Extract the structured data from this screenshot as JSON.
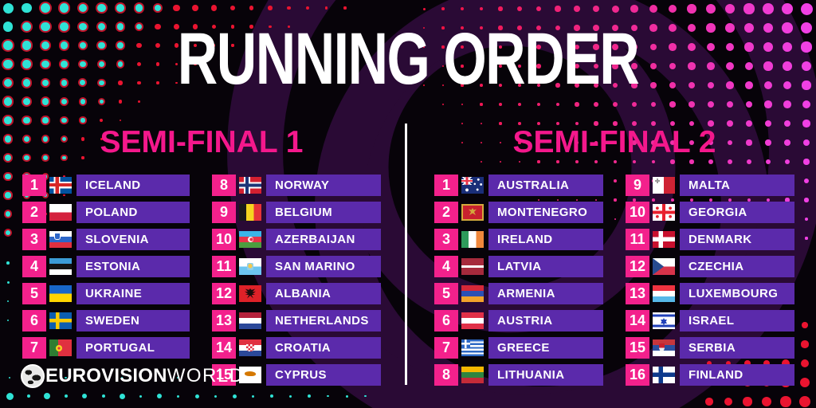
{
  "title": "RUNNING ORDER",
  "colors": {
    "background": "#070309",
    "accent_pink": "#f3218c",
    "bar_purple": "#5b2aab",
    "dot_teal": "#2fe3d6",
    "dot_red": "#ea1430",
    "dot_magenta": "#f040e4",
    "swirl_purple": "#2a0a35",
    "text_white": "#ffffff"
  },
  "semifinals": [
    {
      "label": "SEMI-FINAL 1",
      "columns": [
        [
          {
            "number": "1",
            "country": "ICELAND",
            "flag": "iceland"
          },
          {
            "number": "2",
            "country": "POLAND",
            "flag": "poland"
          },
          {
            "number": "3",
            "country": "SLOVENIA",
            "flag": "slovenia"
          },
          {
            "number": "4",
            "country": "ESTONIA",
            "flag": "estonia"
          },
          {
            "number": "5",
            "country": "UKRAINE",
            "flag": "ukraine"
          },
          {
            "number": "6",
            "country": "SWEDEN",
            "flag": "sweden"
          },
          {
            "number": "7",
            "country": "PORTUGAL",
            "flag": "portugal"
          }
        ],
        [
          {
            "number": "8",
            "country": "NORWAY",
            "flag": "norway"
          },
          {
            "number": "9",
            "country": "BELGIUM",
            "flag": "belgium"
          },
          {
            "number": "10",
            "country": "AZERBAIJAN",
            "flag": "azerbaijan"
          },
          {
            "number": "11",
            "country": "SAN MARINO",
            "flag": "sanmarino"
          },
          {
            "number": "12",
            "country": "ALBANIA",
            "flag": "albania"
          },
          {
            "number": "13",
            "country": "NETHERLANDS",
            "flag": "netherlands"
          },
          {
            "number": "14",
            "country": "CROATIA",
            "flag": "croatia"
          },
          {
            "number": "15",
            "country": "CYPRUS",
            "flag": "cyprus"
          }
        ]
      ]
    },
    {
      "label": "SEMI-FINAL 2",
      "columns": [
        [
          {
            "number": "1",
            "country": "AUSTRALIA",
            "flag": "australia"
          },
          {
            "number": "2",
            "country": "MONTENEGRO",
            "flag": "montenegro"
          },
          {
            "number": "3",
            "country": "IRELAND",
            "flag": "ireland"
          },
          {
            "number": "4",
            "country": "LATVIA",
            "flag": "latvia"
          },
          {
            "number": "5",
            "country": "ARMENIA",
            "flag": "armenia"
          },
          {
            "number": "6",
            "country": "AUSTRIA",
            "flag": "austria"
          },
          {
            "number": "7",
            "country": "GREECE",
            "flag": "greece"
          },
          {
            "number": "8",
            "country": "LITHUANIA",
            "flag": "lithuania"
          }
        ],
        [
          {
            "number": "9",
            "country": "MALTA",
            "flag": "malta"
          },
          {
            "number": "10",
            "country": "GEORGIA",
            "flag": "georgia"
          },
          {
            "number": "11",
            "country": "DENMARK",
            "flag": "denmark"
          },
          {
            "number": "12",
            "country": "CZECHIA",
            "flag": "czechia"
          },
          {
            "number": "13",
            "country": "LUXEMBOURG",
            "flag": "luxembourg"
          },
          {
            "number": "14",
            "country": "ISRAEL",
            "flag": "israel"
          },
          {
            "number": "15",
            "country": "SERBIA",
            "flag": "serbia"
          },
          {
            "number": "16",
            "country": "FINLAND",
            "flag": "finland"
          }
        ]
      ]
    }
  ],
  "logo": {
    "icon": "globe-icon",
    "bold": "EUROVISION",
    "light": "WORLD"
  }
}
